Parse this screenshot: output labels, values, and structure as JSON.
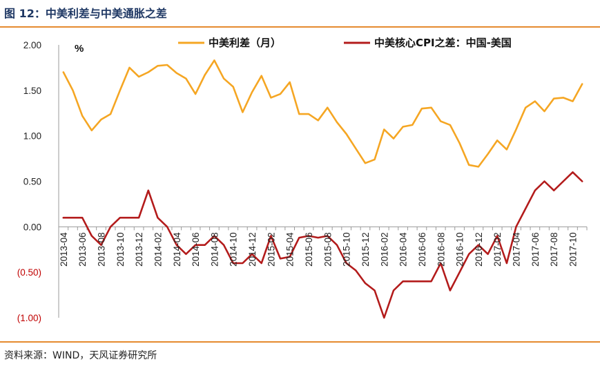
{
  "figure": {
    "title": "图 12：中美利差与中美通胀之差",
    "source": "资料来源：WIND，天风证券研究所"
  },
  "chart_data": {
    "type": "line",
    "unit_label": "%",
    "x": [
      "2013-04",
      "2013-05",
      "2013-06",
      "2013-07",
      "2013-08",
      "2013-09",
      "2013-10",
      "2013-11",
      "2013-12",
      "2014-01",
      "2014-02",
      "2014-03",
      "2014-04",
      "2014-05",
      "2014-06",
      "2014-07",
      "2014-08",
      "2014-09",
      "2014-10",
      "2014-11",
      "2014-12",
      "2015-01",
      "2015-02",
      "2015-03",
      "2015-04",
      "2015-05",
      "2015-06",
      "2015-07",
      "2015-08",
      "2015-09",
      "2015-10",
      "2015-11",
      "2015-12",
      "2016-01",
      "2016-02",
      "2016-03",
      "2016-04",
      "2016-05",
      "2016-06",
      "2016-07",
      "2016-08",
      "2016-09",
      "2016-10",
      "2016-11",
      "2016-12",
      "2017-01",
      "2017-02",
      "2017-03",
      "2017-04",
      "2017-05",
      "2017-06",
      "2017-07",
      "2017-08",
      "2017-09",
      "2017-10",
      "2017-11"
    ],
    "tick_labels": [
      "2013-04",
      "2013-06",
      "2013-08",
      "2013-10",
      "2013-12",
      "2014-02",
      "2014-04",
      "2014-06",
      "2014-08",
      "2014-10",
      "2014-12",
      "2015-02",
      "2015-04",
      "2015-06",
      "2015-08",
      "2015-10",
      "2015-12",
      "2016-02",
      "2016-04",
      "2016-06",
      "2016-08",
      "2016-10",
      "2016-12",
      "2017-02",
      "2017-04",
      "2017-06",
      "2017-08",
      "2017-10"
    ],
    "y_ticks": [
      "2.00",
      "1.50",
      "1.00",
      "0.50",
      "0.00",
      "(0.50)",
      "(1.00)"
    ],
    "y_tick_values": [
      2.0,
      1.5,
      1.0,
      0.5,
      0.0,
      -0.5,
      -1.0
    ],
    "ylim": [
      -1.0,
      2.0
    ],
    "grid": false,
    "legend_position": "top",
    "series": [
      {
        "name": "中美利差（月）",
        "color": "#f5a623",
        "values": [
          1.7,
          1.5,
          1.22,
          1.06,
          1.18,
          1.24,
          1.5,
          1.75,
          1.65,
          1.7,
          1.77,
          1.78,
          1.69,
          1.63,
          1.46,
          1.67,
          1.83,
          1.63,
          1.54,
          1.26,
          1.48,
          1.66,
          1.42,
          1.46,
          1.59,
          1.24,
          1.24,
          1.17,
          1.31,
          1.15,
          1.02,
          0.86,
          0.7,
          0.74,
          1.07,
          0.97,
          1.1,
          1.12,
          1.3,
          1.31,
          1.16,
          1.12,
          0.92,
          0.68,
          0.66,
          0.8,
          0.95,
          0.85,
          1.07,
          1.31,
          1.38,
          1.27,
          1.41,
          1.42,
          1.38,
          1.57
        ]
      },
      {
        "name": "中美核心CPI之差：中国-美国",
        "color": "#b31b1b",
        "values": [
          0.1,
          0.1,
          0.1,
          -0.1,
          -0.2,
          0.0,
          0.1,
          0.1,
          0.1,
          0.4,
          0.1,
          0.0,
          -0.2,
          -0.3,
          -0.2,
          -0.2,
          -0.1,
          -0.2,
          -0.4,
          -0.4,
          -0.3,
          -0.4,
          -0.1,
          -0.35,
          -0.33,
          -0.12,
          -0.1,
          -0.12,
          -0.1,
          -0.2,
          -0.4,
          -0.48,
          -0.62,
          -0.7,
          -1.0,
          -0.7,
          -0.6,
          -0.6,
          -0.6,
          -0.6,
          -0.4,
          -0.7,
          -0.5,
          -0.3,
          -0.2,
          -0.3,
          -0.1,
          -0.4,
          0.0,
          0.2,
          0.4,
          0.5,
          0.4,
          0.5,
          0.6,
          0.5
        ]
      }
    ]
  }
}
